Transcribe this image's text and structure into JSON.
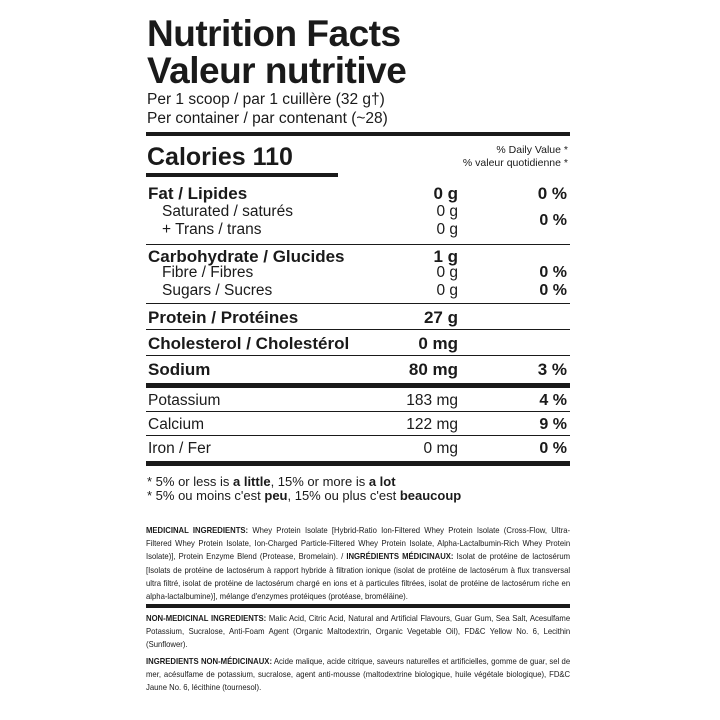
{
  "header": {
    "title_en": "Nutrition Facts",
    "title_fr": "Valeur nutritive",
    "serving": "Per 1 scoop / par 1 cuillère (32 g†)",
    "per_container": "Per container / par contenant (~28)"
  },
  "calories": {
    "label": "Calories 110",
    "dv_en": "% Daily Value *",
    "dv_fr": "% valeur quotidienne *"
  },
  "nutrients": [
    {
      "name": "Fat / Lipides",
      "amount": "0 g",
      "dv": "0 %"
    },
    {
      "name": "Saturated / saturés",
      "amount": "0 g"
    },
    {
      "name": "+ Trans / trans",
      "amount": "0 g",
      "dv": "0 %"
    },
    {
      "name": "Carbohydrate / Glucides",
      "amount": "1 g"
    },
    {
      "name": "Fibre / Fibres",
      "amount": "0 g",
      "dv": "0 %"
    },
    {
      "name": "Sugars / Sucres",
      "amount": "0 g",
      "dv": "0 %"
    },
    {
      "name": "Protein / Protéines",
      "amount": "27 g"
    },
    {
      "name": "Cholesterol / Cholestérol",
      "amount": "0 mg"
    },
    {
      "name": "Sodium",
      "amount": "80 mg",
      "dv": "3 %"
    },
    {
      "name": "Potassium",
      "amount": "183 mg",
      "dv": "4 %"
    },
    {
      "name": "Calcium",
      "amount": "122 mg",
      "dv": "9 %"
    },
    {
      "name": "Iron / Fer",
      "amount": "0 mg",
      "dv": "0 %"
    }
  ],
  "footnote": {
    "en_a": "* 5% or less is ",
    "en_b": "a little",
    "en_c": ", 15% or more is ",
    "en_d": "a lot",
    "fr_a": "* 5% ou moins c'est ",
    "fr_b": "peu",
    "fr_c": ", 15% ou plus c'est ",
    "fr_d": "beaucoup"
  },
  "ingredients": {
    "med_label": "MEDICINAL INGREDIENTS:",
    "med_text": " Whey Protein Isolate [Hybrid-Ratio Ion-Filtered Whey Protein Isolate (Cross-Flow, Ultra-Filtered Whey Protein Isolate, Ion-Charged Particle-Filtered Whey Protein Isolate, Alpha-Lactalbumin-Rich Whey Protein Isolate)], Protein Enzyme Blend (Protease, Bromelain). / ",
    "med_fr_label": "INGRÉDIENTS MÉDICINAUX:",
    "med_fr_text": " Isolat de protéine de lactosérum [Isolats de protéine de lactosérum à rapport hybride à filtration ionique (isolat de protéine de lactosérum à flux transversal ultra filtré, isolat de protéine de lactosérum chargé en ions et à particules filtrées, isolat de protéine de lactosérum riche en alpha-lactalbumine)], mélange d'enzymes protéiques (protéase, broméläine).",
    "non_label": "NON-MEDICINAL INGREDIENTS:",
    "non_text": " Malic Acid, Citric Acid, Natural and Artificial Flavours, Guar Gum, Sea Salt, Acesulfame Potassium, Sucralose, Anti-Foam Agent (Organic Maltodextrin, Organic Vegetable Oil), FD&C Yellow No. 6, Lecithin (Sunflower).",
    "non_fr_label": "INGREDIENTS NON-MÉDICINAUX:",
    "non_fr_text": " Acide malique, acide citrique, saveurs naturelles et artificielles, gomme de guar, sel de mer, acésulfame de potassium, sucralose, agent anti-mousse (maltodextrine biologique, huile végétale biologique), FD&C Jaune No. 6, lécithine (tournesol)."
  }
}
